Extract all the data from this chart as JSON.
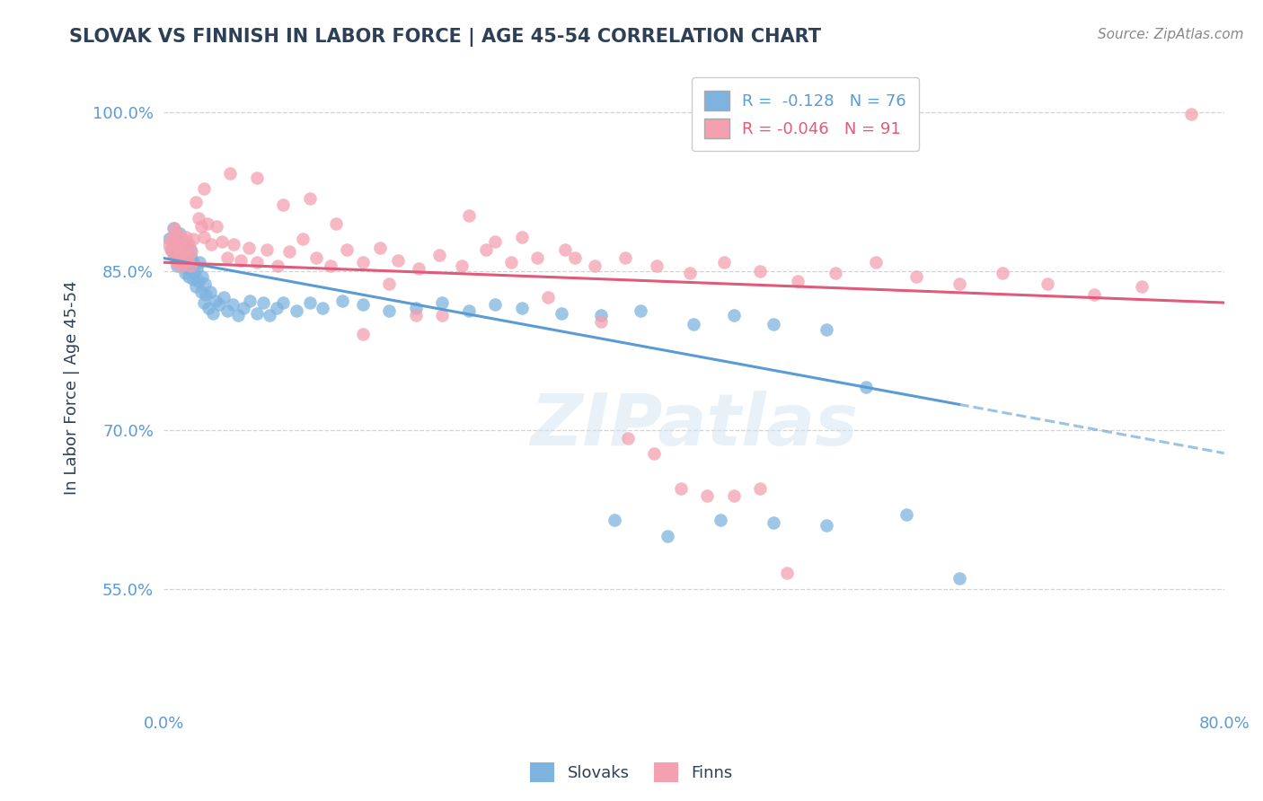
{
  "title": "SLOVAK VS FINNISH IN LABOR FORCE | AGE 45-54 CORRELATION CHART",
  "source_text": "Source: ZipAtlas.com",
  "ylabel": "In Labor Force | Age 45-54",
  "xlim": [
    0.0,
    0.8
  ],
  "ylim": [
    0.44,
    1.04
  ],
  "xticks": [
    0.0,
    0.1,
    0.2,
    0.3,
    0.4,
    0.5,
    0.6,
    0.7,
    0.8
  ],
  "xticklabels": [
    "0.0%",
    "",
    "",
    "",
    "",
    "",
    "",
    "",
    "80.0%"
  ],
  "yticks": [
    0.55,
    0.7,
    0.85,
    1.0
  ],
  "yticklabels": [
    "55.0%",
    "70.0%",
    "85.0%",
    "100.0%"
  ],
  "slovak_R": -0.128,
  "slovak_N": 76,
  "finn_R": -0.046,
  "finn_N": 91,
  "slovak_color": "#7eb3e0",
  "finn_color": "#f4a0b0",
  "slovak_line_color": "#5b9bd5",
  "finn_line_color": "#e05a7a",
  "title_color": "#2e4057",
  "axis_label_color": "#2e4057",
  "tick_color": "#5b9bd5",
  "grid_color": "#c8c8c8",
  "legend_label_slovak": "Slovaks",
  "legend_label_finn": "Finns",
  "watermark_text": "ZIPatlas",
  "background_color": "#ffffff",
  "slovak_trend_x0": 0.0,
  "slovak_trend_y0": 0.862,
  "slovak_trend_x1": 0.6,
  "slovak_trend_y1": 0.724,
  "slovak_trend_xdash0": 0.6,
  "slovak_trend_ydash0": 0.724,
  "slovak_trend_xdash1": 0.8,
  "slovak_trend_ydash1": 0.678,
  "finn_trend_x0": 0.0,
  "finn_trend_y0": 0.858,
  "finn_trend_x1": 0.8,
  "finn_trend_y1": 0.82,
  "slovak_scatter_x": [
    0.004,
    0.006,
    0.007,
    0.008,
    0.009,
    0.01,
    0.01,
    0.011,
    0.012,
    0.013,
    0.014,
    0.015,
    0.015,
    0.016,
    0.016,
    0.017,
    0.018,
    0.018,
    0.019,
    0.02,
    0.02,
    0.021,
    0.022,
    0.022,
    0.023,
    0.024,
    0.025,
    0.026,
    0.027,
    0.028,
    0.029,
    0.03,
    0.031,
    0.032,
    0.034,
    0.035,
    0.037,
    0.039,
    0.042,
    0.045,
    0.048,
    0.052,
    0.056,
    0.06,
    0.065,
    0.07,
    0.075,
    0.08,
    0.085,
    0.09,
    0.1,
    0.11,
    0.12,
    0.135,
    0.15,
    0.17,
    0.19,
    0.21,
    0.23,
    0.25,
    0.27,
    0.3,
    0.33,
    0.36,
    0.4,
    0.43,
    0.46,
    0.5,
    0.53,
    0.56,
    0.6,
    0.34,
    0.38,
    0.42,
    0.46,
    0.5
  ],
  "slovak_scatter_y": [
    0.88,
    0.87,
    0.89,
    0.865,
    0.878,
    0.855,
    0.872,
    0.862,
    0.885,
    0.868,
    0.875,
    0.858,
    0.87,
    0.848,
    0.865,
    0.852,
    0.858,
    0.875,
    0.845,
    0.855,
    0.87,
    0.862,
    0.842,
    0.858,
    0.848,
    0.835,
    0.852,
    0.84,
    0.858,
    0.83,
    0.845,
    0.82,
    0.838,
    0.828,
    0.815,
    0.83,
    0.81,
    0.822,
    0.818,
    0.825,
    0.812,
    0.818,
    0.808,
    0.815,
    0.822,
    0.81,
    0.82,
    0.808,
    0.815,
    0.82,
    0.812,
    0.82,
    0.815,
    0.822,
    0.818,
    0.812,
    0.815,
    0.82,
    0.812,
    0.818,
    0.815,
    0.81,
    0.808,
    0.812,
    0.8,
    0.808,
    0.8,
    0.795,
    0.74,
    0.62,
    0.56,
    0.615,
    0.6,
    0.615,
    0.612,
    0.61
  ],
  "finn_scatter_x": [
    0.003,
    0.005,
    0.006,
    0.007,
    0.008,
    0.008,
    0.009,
    0.01,
    0.01,
    0.011,
    0.012,
    0.013,
    0.013,
    0.014,
    0.015,
    0.016,
    0.017,
    0.018,
    0.019,
    0.02,
    0.021,
    0.022,
    0.024,
    0.026,
    0.028,
    0.03,
    0.033,
    0.036,
    0.04,
    0.044,
    0.048,
    0.053,
    0.058,
    0.064,
    0.07,
    0.078,
    0.086,
    0.095,
    0.105,
    0.115,
    0.126,
    0.138,
    0.15,
    0.163,
    0.177,
    0.192,
    0.208,
    0.225,
    0.243,
    0.262,
    0.282,
    0.303,
    0.325,
    0.348,
    0.372,
    0.397,
    0.423,
    0.45,
    0.478,
    0.507,
    0.537,
    0.568,
    0.6,
    0.633,
    0.667,
    0.702,
    0.738,
    0.775,
    0.03,
    0.05,
    0.07,
    0.09,
    0.11,
    0.13,
    0.15,
    0.17,
    0.19,
    0.21,
    0.23,
    0.25,
    0.27,
    0.29,
    0.31,
    0.33,
    0.35,
    0.37,
    0.39,
    0.41,
    0.43,
    0.45,
    0.47
  ],
  "finn_scatter_y": [
    0.875,
    0.87,
    0.882,
    0.865,
    0.878,
    0.89,
    0.858,
    0.872,
    0.885,
    0.862,
    0.875,
    0.855,
    0.868,
    0.88,
    0.858,
    0.87,
    0.882,
    0.862,
    0.875,
    0.855,
    0.868,
    0.88,
    0.915,
    0.9,
    0.892,
    0.882,
    0.895,
    0.875,
    0.892,
    0.878,
    0.862,
    0.875,
    0.86,
    0.872,
    0.858,
    0.87,
    0.855,
    0.868,
    0.88,
    0.862,
    0.855,
    0.87,
    0.858,
    0.872,
    0.86,
    0.852,
    0.865,
    0.855,
    0.87,
    0.858,
    0.862,
    0.87,
    0.855,
    0.862,
    0.855,
    0.848,
    0.858,
    0.85,
    0.84,
    0.848,
    0.858,
    0.845,
    0.838,
    0.848,
    0.838,
    0.828,
    0.835,
    0.998,
    0.928,
    0.942,
    0.938,
    0.912,
    0.918,
    0.895,
    0.79,
    0.838,
    0.808,
    0.808,
    0.902,
    0.878,
    0.882,
    0.825,
    0.862,
    0.802,
    0.692,
    0.678,
    0.645,
    0.638,
    0.638,
    0.645,
    0.565
  ]
}
